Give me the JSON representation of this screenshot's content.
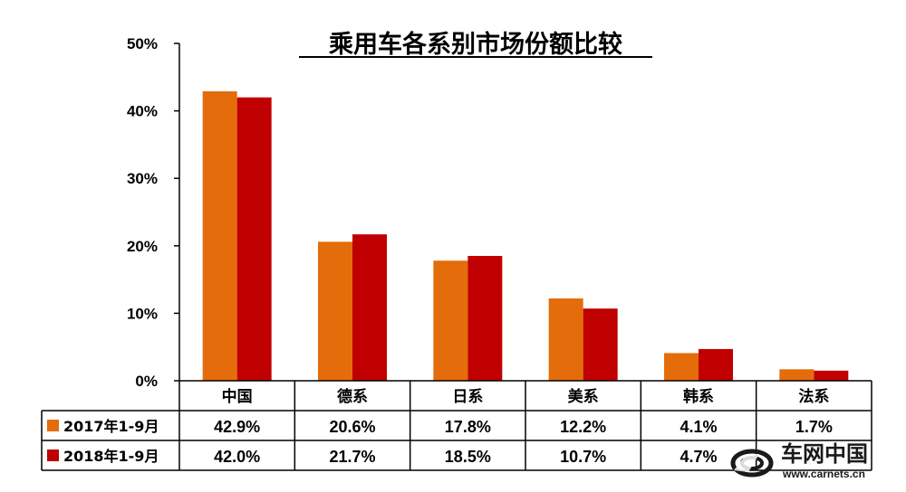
{
  "chart_data": {
    "type": "bar",
    "title": "乘用车各系别市场份额比较",
    "categories": [
      "中国",
      "德系",
      "日系",
      "美系",
      "韩系",
      "法系"
    ],
    "series": [
      {
        "name": "2017年1-9月",
        "values": [
          42.9,
          20.6,
          17.8,
          12.2,
          4.1,
          1.7
        ],
        "color": "#E46C0A"
      },
      {
        "name": "2018年1-9月",
        "values": [
          42.0,
          21.7,
          18.5,
          10.7,
          4.7,
          1.5
        ],
        "color": "#C00000"
      }
    ],
    "table_values": [
      [
        "42.9%",
        "20.6%",
        "17.8%",
        "12.2%",
        "4.1%",
        "1.7%"
      ],
      [
        "42.0%",
        "21.7%",
        "18.5%",
        "10.7%",
        "4.7%",
        ""
      ]
    ],
    "ylim": [
      0,
      50
    ],
    "yticks": [
      "0%",
      "10%",
      "20%",
      "30%",
      "40%",
      "50%"
    ],
    "legend_placement": "data-table-left",
    "grid": false
  },
  "watermark": {
    "brand": "车网中国",
    "url": "www.carnets.cn"
  }
}
